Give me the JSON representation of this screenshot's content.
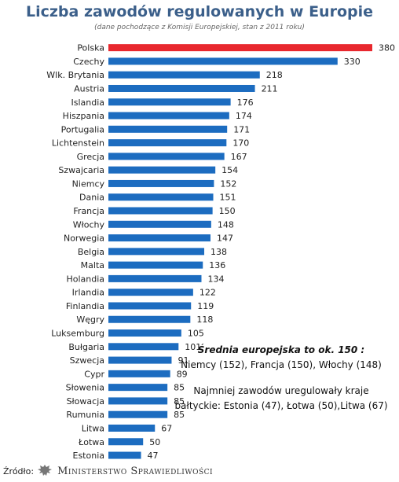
{
  "chart_data": {
    "type": "bar",
    "orientation": "horizontal",
    "title": "Liczba zawodów regulowanych w Europie",
    "subtitle": "(dane pochodzące z Komisji Europejskiej, stan z 2011 roku)",
    "categories": [
      "Polska",
      "Czechy",
      "Wlk. Brytania",
      "Austria",
      "Islandia",
      "Hiszpania",
      "Portugalia",
      "Lichtenstein",
      "Grecja",
      "Szwajcaria",
      "Niemcy",
      "Dania",
      "Francja",
      "Włochy",
      "Norwegia",
      "Belgia",
      "Malta",
      "Holandia",
      "Irlandia",
      "Finlandia",
      "Węgry",
      "Luksemburg",
      "Bułgaria",
      "Szwecja",
      "Cypr",
      "Słowenia",
      "Słowacja",
      "Rumunia",
      "Litwa",
      "Łotwa",
      "Estonia"
    ],
    "values": [
      380,
      330,
      218,
      211,
      176,
      174,
      171,
      170,
      167,
      154,
      152,
      151,
      150,
      148,
      147,
      138,
      136,
      134,
      122,
      119,
      118,
      105,
      101,
      91,
      89,
      85,
      85,
      85,
      67,
      50,
      47
    ],
    "highlight_color": "#e8282e",
    "bar_color": "#1c6cc0",
    "xlim": [
      0,
      380
    ],
    "grid": false,
    "legend": "none"
  },
  "annotation": {
    "heading": "Średnia europejska to ok. 150 :",
    "line1": "Niemcy (152), Francja (150), Włochy (148)",
    "line2": "Najmniej zawodów  uregulowały kraje",
    "line3": "bałtyckie: Estonia (47), Łotwa (50),Litwa (67)"
  },
  "footer": {
    "source_label": "Źródło:",
    "ministry": "Ministerstwo Sprawiedliwości",
    "logo_icon": "eagle-emblem-icon"
  }
}
